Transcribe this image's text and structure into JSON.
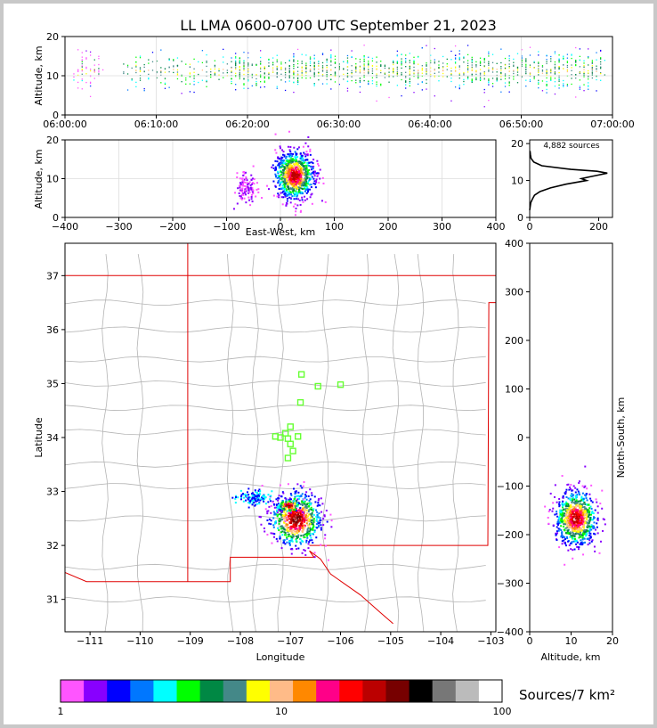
{
  "title": "LL LMA 0600-0700 UTC September 21, 2023",
  "chart_data": [
    {
      "id": "time_height",
      "type": "scatter",
      "ylabel": "Altitude, km",
      "xlim": [
        "06:00:00",
        "07:00:00"
      ],
      "ylim": [
        0,
        20
      ],
      "xticks": [
        "06:00:00",
        "06:10:00",
        "06:20:00",
        "06:30:00",
        "06:40:00",
        "06:50:00",
        "07:00:00"
      ],
      "yticks": [
        "0",
        "10",
        "20"
      ],
      "grid": true,
      "active_minutes": [
        [
          1,
          4
        ],
        [
          6,
          20
        ],
        [
          18,
          59
        ]
      ],
      "altitude_range_km": [
        3,
        18
      ]
    },
    {
      "id": "ew_alt",
      "type": "scatter",
      "xlabel": "East-West, km",
      "ylabel": "Altitude, km",
      "xlim": [
        -400,
        400
      ],
      "ylim": [
        0,
        20
      ],
      "xticks": [
        "−400",
        "−300",
        "−200",
        "−100",
        "0",
        "100",
        "200",
        "300",
        "400"
      ],
      "yticks": [
        "0",
        "10",
        "20"
      ],
      "grid": true,
      "clusters": [
        {
          "x_km": 25,
          "alt_km": 11,
          "spread_x_km": 18,
          "spread_alt_km": 3
        },
        {
          "x_km": -65,
          "alt_km": 8,
          "spread_x_km": 10,
          "spread_alt_km": 2
        }
      ]
    },
    {
      "id": "alt_hist",
      "type": "line",
      "annotation": "4,882 sources",
      "xlim": [
        0,
        240
      ],
      "ylim": [
        0,
        21
      ],
      "xticks": [
        "0",
        "200"
      ],
      "yticks": [
        "0",
        "10",
        "20"
      ],
      "profile": [
        {
          "alt": 2,
          "count": 0
        },
        {
          "alt": 4,
          "count": 3
        },
        {
          "alt": 5,
          "count": 8
        },
        {
          "alt": 6,
          "count": 14
        },
        {
          "alt": 7,
          "count": 30
        },
        {
          "alt": 8,
          "count": 60
        },
        {
          "alt": 9,
          "count": 105
        },
        {
          "alt": 10,
          "count": 165
        },
        {
          "alt": 10.5,
          "count": 150
        },
        {
          "alt": 11,
          "count": 175
        },
        {
          "alt": 11.5,
          "count": 200
        },
        {
          "alt": 12,
          "count": 225
        },
        {
          "alt": 12.5,
          "count": 195
        },
        {
          "alt": 13,
          "count": 120
        },
        {
          "alt": 14,
          "count": 35
        },
        {
          "alt": 15,
          "count": 12
        },
        {
          "alt": 16,
          "count": 4
        },
        {
          "alt": 17,
          "count": 2
        },
        {
          "alt": 18,
          "count": 1
        }
      ]
    },
    {
      "id": "plan_view",
      "type": "scatter",
      "xlabel": "Longitude",
      "ylabel": "Latitude",
      "xlim": [
        -111.5,
        -102.9
      ],
      "ylim": [
        30.4,
        37.6
      ],
      "xticks": [
        "−111",
        "−110",
        "−109",
        "−108",
        "−107",
        "−106",
        "−105",
        "−104",
        "−103"
      ],
      "yticks": [
        "31",
        "32",
        "33",
        "34",
        "35",
        "36",
        "37"
      ],
      "stations": [
        {
          "lon": -106.78,
          "lat": 35.17
        },
        {
          "lon": -106.45,
          "lat": 34.95
        },
        {
          "lon": -106.0,
          "lat": 34.98
        },
        {
          "lon": -106.8,
          "lat": 34.65
        },
        {
          "lon": -107.0,
          "lat": 34.2
        },
        {
          "lon": -107.1,
          "lat": 34.08
        },
        {
          "lon": -107.3,
          "lat": 34.02
        },
        {
          "lon": -107.2,
          "lat": 34.0
        },
        {
          "lon": -107.05,
          "lat": 33.98
        },
        {
          "lon": -106.85,
          "lat": 34.02
        },
        {
          "lon": -107.0,
          "lat": 33.88
        },
        {
          "lon": -106.95,
          "lat": 33.75
        },
        {
          "lon": -107.05,
          "lat": 33.62
        }
      ],
      "clusters": [
        {
          "lon": -106.9,
          "lat": 32.5,
          "spread_lon": 0.25,
          "spread_lat": 0.25
        },
        {
          "lon": -107.05,
          "lat": 32.75,
          "spread_lon": 0.12,
          "spread_lat": 0.06
        },
        {
          "lon": -107.75,
          "lat": 32.9,
          "spread_lon": 0.18,
          "spread_lat": 0.06
        }
      ]
    },
    {
      "id": "alt_ns",
      "type": "scatter",
      "xlabel": "Altitude, km",
      "ylabel": "North-South, km",
      "xlim": [
        0,
        20
      ],
      "ylim": [
        -400,
        400
      ],
      "xticks": [
        "0",
        "10",
        "20"
      ],
      "yticks": [
        "−400",
        "−300",
        "−200",
        "−100",
        "0",
        "100",
        "200",
        "300",
        "400"
      ],
      "clusters": [
        {
          "alt_km": 11,
          "ns_km": -165,
          "spread_alt_km": 2.5,
          "spread_ns_km": 28
        }
      ]
    }
  ],
  "colorbar": {
    "label": "Sources/7 km²",
    "ticks": [
      "1",
      "10",
      "100"
    ],
    "colors": [
      "#ff55ff",
      "#8800ff",
      "#0000ff",
      "#0077ff",
      "#00ffff",
      "#00ff00",
      "#008844",
      "#448888",
      "#ffff00",
      "#ffbb88",
      "#ff8800",
      "#ff0088",
      "#ff0000",
      "#bb0000",
      "#770000",
      "#000000",
      "#777777",
      "#bbbbbb",
      "#ffffff"
    ]
  },
  "colors": {
    "state_border": "#e00000",
    "county_lines": "#b4b4b4",
    "station_marker": "#66ff33",
    "frame": "#c8c8c8"
  }
}
